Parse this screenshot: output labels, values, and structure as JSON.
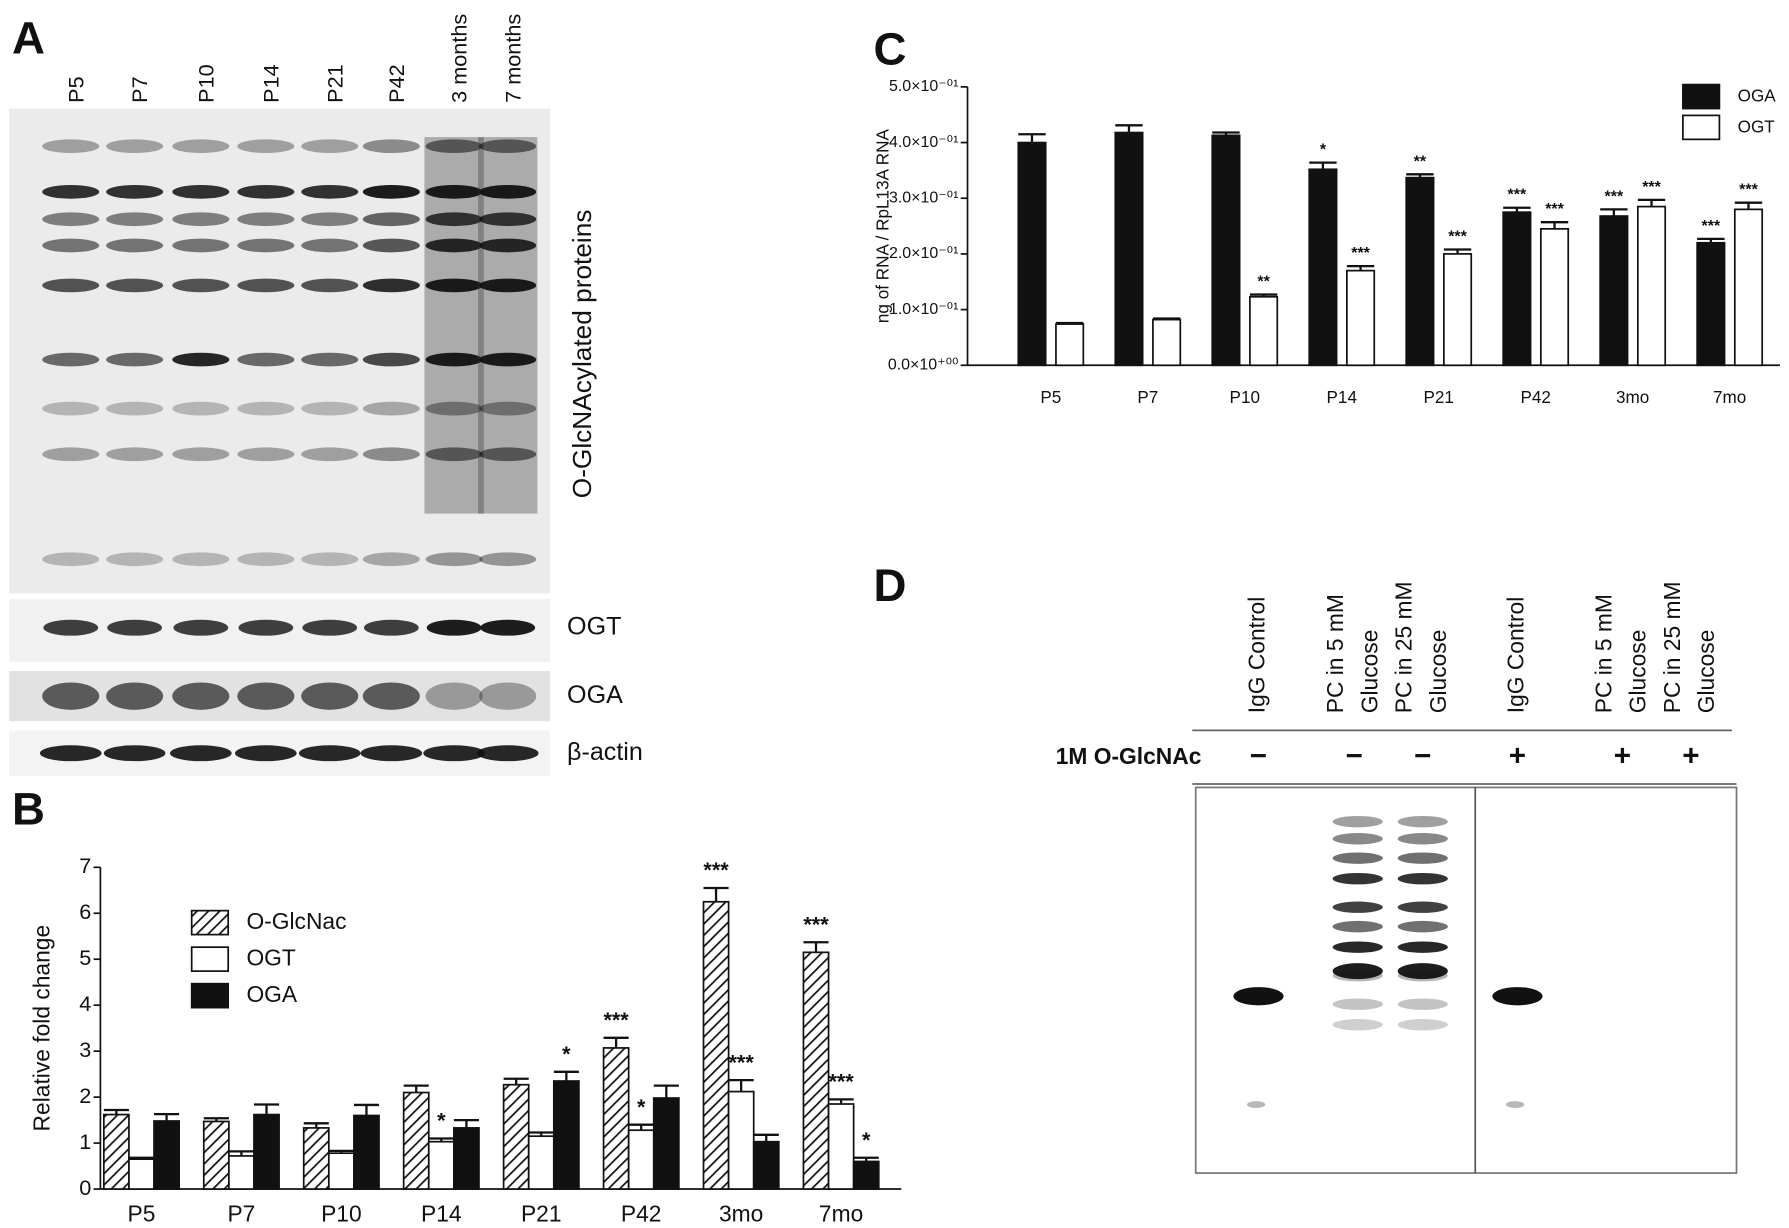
{
  "panel_labels": [
    "A",
    "B",
    "C",
    "D"
  ],
  "blot_a": {
    "lanes": [
      "P5",
      "P7",
      "P10",
      "P14",
      "P21",
      "P42",
      "3 months",
      "7 months"
    ],
    "bands": [
      "O-GlcNAcylated proteins",
      "OGT",
      "OGA",
      "β-actin"
    ]
  },
  "blot_d": {
    "columns": [
      [
        "IgG Control"
      ],
      [
        "PC in 5 mM",
        "Glucose"
      ],
      [
        "PC in 25 mM",
        "Glucose"
      ],
      [
        "IgG Control"
      ],
      [
        "PC in 5 mM",
        "Glucose"
      ],
      [
        "PC in 25 mM",
        "Glucose"
      ]
    ],
    "treatment": {
      "label": "1M O-GlcNAc",
      "signs": [
        "−",
        "−",
        "−",
        "+",
        "+",
        "+"
      ]
    }
  },
  "chart_data": [
    {
      "type": "bar",
      "y_label": "Relative fold change",
      "categories": [
        "P5",
        "P7",
        "P10",
        "P14",
        "P21",
        "P42",
        "3mo",
        "7mo"
      ],
      "series": [
        {
          "name": "O-GlcNac",
          "color": "#ffffff",
          "fill_pattern": "hatch",
          "values": [
            1.62,
            1.47,
            1.33,
            2.1,
            2.27,
            3.07,
            6.25,
            5.15
          ],
          "errors": [
            0.1,
            0.07,
            0.1,
            0.15,
            0.13,
            0.22,
            0.3,
            0.22
          ],
          "significance": [
            null,
            null,
            null,
            null,
            null,
            "***",
            "***",
            "***"
          ]
        },
        {
          "name": "OGT",
          "color": "#ffffff",
          "values": [
            0.65,
            0.72,
            0.78,
            1.03,
            1.15,
            1.28,
            2.12,
            1.85
          ],
          "errors": [
            0.03,
            0.1,
            0.05,
            0.07,
            0.08,
            0.12,
            0.25,
            0.1
          ],
          "significance": [
            null,
            null,
            null,
            "*",
            null,
            "*",
            "***",
            "***"
          ]
        },
        {
          "name": "OGA",
          "color": "#111111",
          "values": [
            1.48,
            1.62,
            1.6,
            1.33,
            2.35,
            1.98,
            1.03,
            0.6
          ],
          "errors": [
            0.15,
            0.22,
            0.23,
            0.17,
            0.2,
            0.27,
            0.15,
            0.08
          ],
          "significance": [
            null,
            null,
            null,
            null,
            "*",
            null,
            null,
            "*"
          ]
        }
      ],
      "ylim": [
        0,
        7
      ],
      "yticks": [
        0,
        1,
        2,
        3,
        4,
        5,
        6,
        7
      ],
      "legend": "upper left"
    },
    {
      "type": "bar",
      "y_label": "ng of RNA / RpL13A RNA",
      "categories": [
        "P5",
        "P7",
        "P10",
        "P14",
        "P21",
        "P42",
        "3mo",
        "7mo"
      ],
      "series": [
        {
          "name": "OGA",
          "color": "#111111",
          "values": [
            0.4,
            0.418,
            0.413,
            0.352,
            0.337,
            0.275,
            0.268,
            0.22
          ],
          "errors": [
            0.015,
            0.013,
            0.005,
            0.012,
            0.006,
            0.008,
            0.012,
            0.007
          ],
          "significance": [
            null,
            null,
            null,
            "*",
            "**",
            "***",
            "***",
            "***"
          ]
        },
        {
          "name": "OGT",
          "color": "#ffffff",
          "values": [
            0.074,
            0.082,
            0.123,
            0.17,
            0.2,
            0.245,
            0.285,
            0.28
          ],
          "errors": [
            0.002,
            0.002,
            0.004,
            0.008,
            0.008,
            0.012,
            0.012,
            0.012
          ],
          "significance": [
            null,
            null,
            "**",
            "***",
            "***",
            "***",
            "***",
            "***"
          ]
        }
      ],
      "ylim": [
        0,
        0.5
      ],
      "yticks": [
        {
          "value": 0,
          "label": "0.0×10⁺⁰⁰"
        },
        {
          "value": 0.1,
          "label": "1.0×10⁻⁰¹"
        },
        {
          "value": 0.2,
          "label": "2.0×10⁻⁰¹"
        },
        {
          "value": 0.3,
          "label": "3.0×10⁻⁰¹"
        },
        {
          "value": 0.4,
          "label": "4.0×10⁻⁰¹"
        },
        {
          "value": 0.5,
          "label": "5.0×10⁻⁰¹"
        }
      ],
      "legend": "upper right"
    }
  ]
}
